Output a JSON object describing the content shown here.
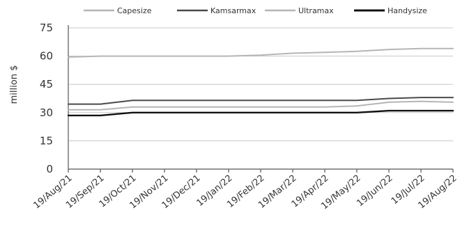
{
  "chart_data": {
    "type": "line",
    "ylabel": "million $",
    "xlabel": "",
    "ylim": [
      0,
      75
    ],
    "yticks": [
      0,
      15,
      30,
      45,
      60,
      75
    ],
    "grid": true,
    "legend_position": "top",
    "x_labels": [
      "19/Aug/21",
      "19/Sep/21",
      "19/Oct/21",
      "19/Nov/21",
      "19/Dec/21",
      "19/Jan/22",
      "19/Feb/22",
      "19/Mar/22",
      "19/Apr/22",
      "19/May/22",
      "19/Jun/22",
      "19/Jul/22",
      "19/Aug/22"
    ],
    "x": [
      "19/Aug/21",
      "19/Sep/21",
      "19/Oct/21",
      "19/Nov/21",
      "19/Dec/21",
      "19/Jan/22",
      "19/Feb/22",
      "19/Mar/22",
      "19/Apr/22",
      "19/May/22",
      "19/Jun/22",
      "19/Jul/22",
      "19/Aug/22"
    ],
    "series": [
      {
        "name": "Capesize",
        "color": "#b5b5b5",
        "width": 2,
        "values": [
          59.5,
          60,
          60,
          60,
          60,
          60,
          60.5,
          61.5,
          62,
          62.5,
          63.5,
          64,
          64
        ]
      },
      {
        "name": "Kamsarmax",
        "color": "#4a4a4a",
        "width": 2,
        "values": [
          34.5,
          34.5,
          36.5,
          36.5,
          36.5,
          36.5,
          36.5,
          36.5,
          36.5,
          36.5,
          37.5,
          38,
          38
        ]
      },
      {
        "name": "Ultramax",
        "color": "#b5b5b5",
        "width": 2,
        "values": [
          31.5,
          31.5,
          33,
          33,
          33,
          33,
          33,
          33,
          33,
          33.5,
          35.5,
          36,
          35.5
        ]
      },
      {
        "name": "Handysize",
        "color": "#111111",
        "width": 2.4,
        "values": [
          28.5,
          28.5,
          30,
          30,
          30,
          30,
          30,
          30,
          30,
          30,
          31,
          31,
          31
        ]
      }
    ]
  }
}
